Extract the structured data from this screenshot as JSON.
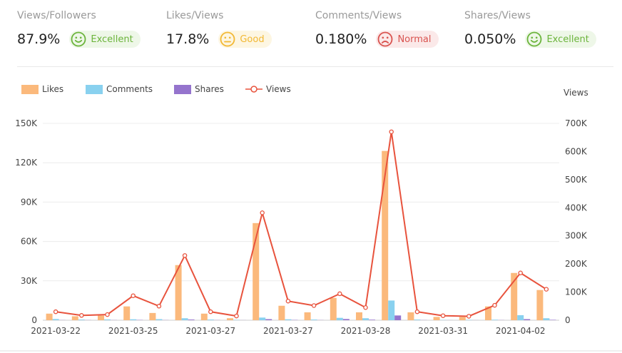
{
  "stats": [
    {
      "label": "Views/Followers",
      "value": "87.9%",
      "rating": "Excellent",
      "face": "smile-icon",
      "color": "#6bb43b"
    },
    {
      "label": "Likes/Views",
      "value": "17.8%",
      "rating": "Good",
      "face": "neutral-icon",
      "color": "#f2b833"
    },
    {
      "label": "Comments/Views",
      "value": "0.180%",
      "rating": "Normal",
      "face": "sad-icon",
      "color": "#d9534f"
    },
    {
      "label": "Shares/Views",
      "value": "0.050%",
      "rating": "Excellent",
      "face": "smile-icon",
      "color": "#6bb43b"
    }
  ],
  "chart_data": {
    "type": "bar",
    "xlabel": "",
    "ylabel": "",
    "y2label": "Views",
    "ylim": [
      0,
      150000
    ],
    "y2lim": [
      0,
      700000
    ],
    "yticks": [
      "0",
      "30K",
      "60K",
      "90K",
      "120K",
      "150K"
    ],
    "y2ticks": [
      "0",
      "100K",
      "200K",
      "300K",
      "400K",
      "500K",
      "600K",
      "700K"
    ],
    "x_tick_labels": [
      "2021-03-22",
      "2021-03-25",
      "2021-03-27",
      "2021-03-27",
      "2021-03-28",
      "2021-03-31",
      "2021-04-02"
    ],
    "legend_position": "top-left",
    "colors": {
      "likes": "#fbb97c",
      "comments": "#89d1ef",
      "shares": "#9574cd",
      "views": "#e8533d"
    },
    "series": [
      {
        "name": "Likes",
        "axis": "left",
        "type": "bar",
        "values": [
          5000,
          3000,
          3500,
          10500,
          5500,
          42000,
          5000,
          1500,
          74000,
          11000,
          6000,
          17000,
          6000,
          129000,
          6000,
          2500,
          2500,
          10500,
          36000,
          23000
        ]
      },
      {
        "name": "Comments",
        "axis": "left",
        "type": "bar",
        "values": [
          900,
          500,
          600,
          700,
          800,
          1500,
          500,
          300,
          2000,
          700,
          500,
          1800,
          1500,
          15000,
          500,
          200,
          300,
          400,
          3800,
          1500
        ]
      },
      {
        "name": "Shares",
        "axis": "left",
        "type": "bar",
        "values": [
          100,
          100,
          100,
          200,
          100,
          500,
          100,
          50,
          800,
          200,
          100,
          900,
          400,
          3600,
          100,
          50,
          50,
          100,
          800,
          300
        ]
      },
      {
        "name": "Views",
        "axis": "right",
        "type": "line",
        "values": [
          30000,
          17000,
          20000,
          87000,
          50000,
          230000,
          30000,
          15000,
          382000,
          68000,
          52000,
          94000,
          45000,
          670000,
          30000,
          16000,
          14000,
          53000,
          168000,
          110000
        ]
      }
    ]
  }
}
